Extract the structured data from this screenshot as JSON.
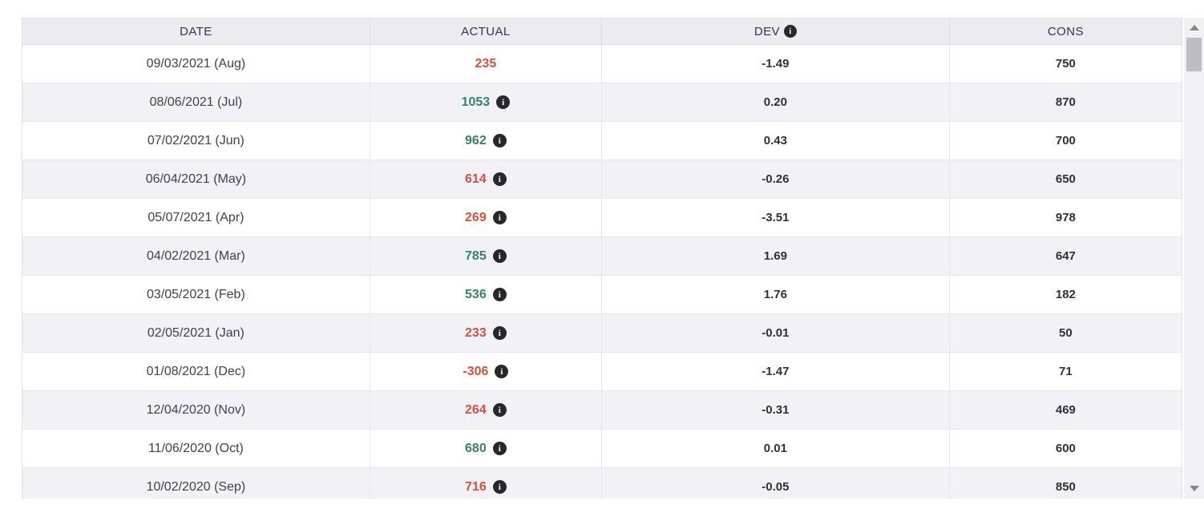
{
  "icons": {
    "info": "i"
  },
  "colors": {
    "positive": "#358266",
    "negative": "#d4503f",
    "header_bg": "#ecebf1",
    "row_alt_bg": "#f2f1f6",
    "info_icon_bg": "#28282c"
  },
  "table": {
    "columns": [
      {
        "label": "DATE",
        "info_icon": false
      },
      {
        "label": "ACTUAL",
        "info_icon": false
      },
      {
        "label": "DEV",
        "info_icon": true
      },
      {
        "label": "CONS",
        "info_icon": false
      }
    ],
    "rows": [
      {
        "date": "09/03/2021 (Aug)",
        "actual": "235",
        "actual_sentiment": "negative",
        "actual_info": false,
        "dev": "-1.49",
        "cons": "750"
      },
      {
        "date": "08/06/2021 (Jul)",
        "actual": "1053",
        "actual_sentiment": "positive",
        "actual_info": true,
        "dev": "0.20",
        "cons": "870"
      },
      {
        "date": "07/02/2021 (Jun)",
        "actual": "962",
        "actual_sentiment": "positive",
        "actual_info": true,
        "dev": "0.43",
        "cons": "700"
      },
      {
        "date": "06/04/2021 (May)",
        "actual": "614",
        "actual_sentiment": "negative",
        "actual_info": true,
        "dev": "-0.26",
        "cons": "650"
      },
      {
        "date": "05/07/2021 (Apr)",
        "actual": "269",
        "actual_sentiment": "negative",
        "actual_info": true,
        "dev": "-3.51",
        "cons": "978"
      },
      {
        "date": "04/02/2021 (Mar)",
        "actual": "785",
        "actual_sentiment": "positive",
        "actual_info": true,
        "dev": "1.69",
        "cons": "647"
      },
      {
        "date": "03/05/2021 (Feb)",
        "actual": "536",
        "actual_sentiment": "positive",
        "actual_info": true,
        "dev": "1.76",
        "cons": "182"
      },
      {
        "date": "02/05/2021 (Jan)",
        "actual": "233",
        "actual_sentiment": "negative",
        "actual_info": true,
        "dev": "-0.01",
        "cons": "50"
      },
      {
        "date": "01/08/2021 (Dec)",
        "actual": "-306",
        "actual_sentiment": "negative",
        "actual_info": true,
        "dev": "-1.47",
        "cons": "71"
      },
      {
        "date": "12/04/2020 (Nov)",
        "actual": "264",
        "actual_sentiment": "negative",
        "actual_info": true,
        "dev": "-0.31",
        "cons": "469"
      },
      {
        "date": "11/06/2020 (Oct)",
        "actual": "680",
        "actual_sentiment": "positive",
        "actual_info": true,
        "dev": "0.01",
        "cons": "600"
      },
      {
        "date": "10/02/2020 (Sep)",
        "actual": "716",
        "actual_sentiment": "negative",
        "actual_info": true,
        "dev": "-0.05",
        "cons": "850"
      }
    ]
  }
}
